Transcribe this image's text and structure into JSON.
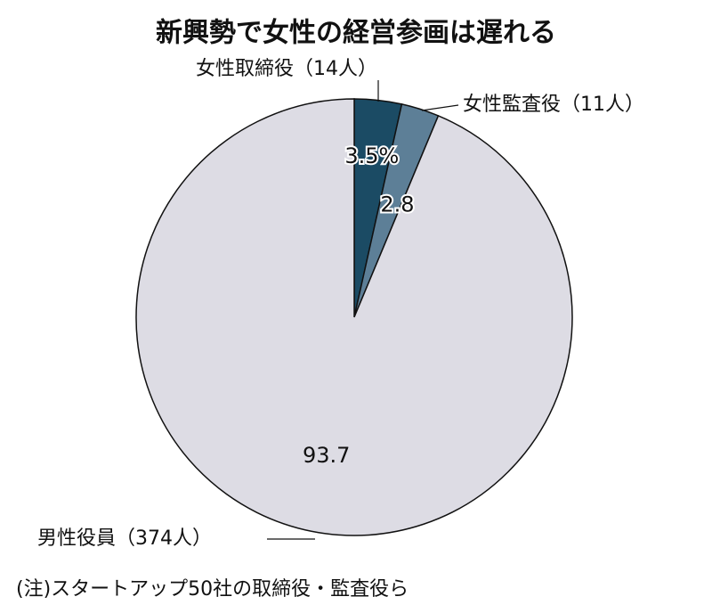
{
  "chart_data": {
    "type": "pie",
    "title": "新興勢で女性の経営参画は遅れる",
    "categories": [
      "女性取締役（14人）",
      "女性監査役（11人）",
      "男性役員（374人）"
    ],
    "values": [
      3.5,
      2.8,
      93.7
    ],
    "value_labels": [
      "3.5%",
      "2.8",
      "93.7"
    ],
    "colors": [
      "#1b4b64",
      "#5d7f97",
      "#dddce4"
    ],
    "note": "(注)スタートアップ50社の取締役・監査役ら"
  }
}
